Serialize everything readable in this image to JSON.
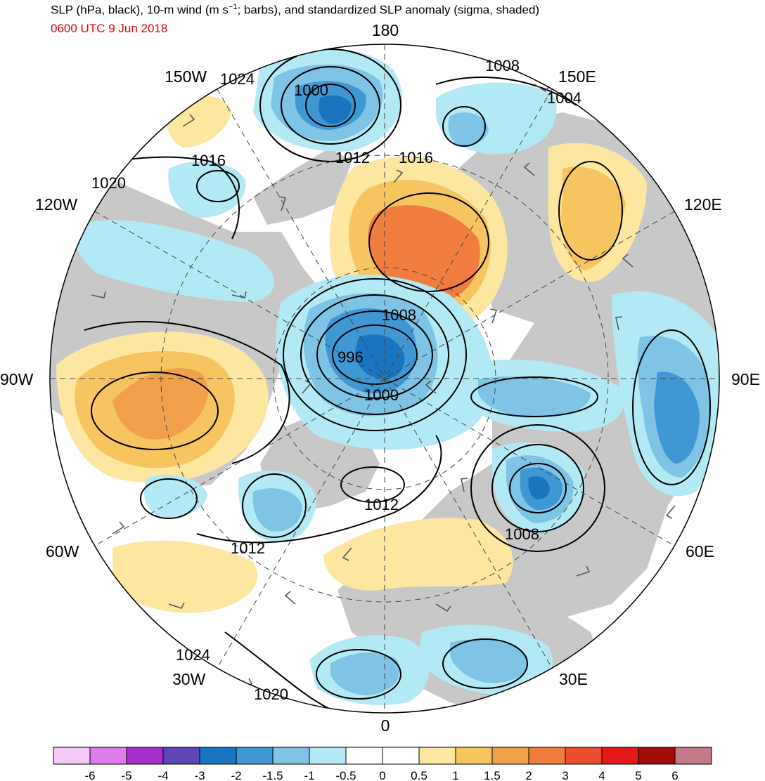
{
  "header": {
    "title_main": "SLP (hPa, black), 10-m wind (m s",
    "title_sup": "−1",
    "title_rest": "; barbs), and standardized SLP anomaly (sigma, shaded)",
    "valid_time": "0600 UTC 9 Jun 2018",
    "valid_time_color": "#e00000"
  },
  "map": {
    "projection": "north polar stereographic",
    "longitude_labels": [
      "180",
      "150E",
      "120E",
      "90E",
      "60E",
      "30E",
      "0",
      "30W",
      "60W",
      "90W",
      "120W",
      "150W"
    ],
    "isobar_labels": [
      "1024",
      "1000",
      "1008",
      "1004",
      "1016",
      "1012",
      "1016",
      "1020",
      "1008",
      "996",
      "1000",
      "1012",
      "1012",
      "1008",
      "1024",
      "1020"
    ],
    "land_color": "#c8c8c8",
    "ocean_color": "#ffffff"
  },
  "colorbar": {
    "colors": [
      "#f5c9f7",
      "#dd7cea",
      "#a72ec9",
      "#6045b4",
      "#1a75c0",
      "#3f97d4",
      "#7fc3e5",
      "#b3e9f5",
      "#ffffff",
      "#ffffff",
      "#fde6a0",
      "#f6c55f",
      "#f3a04b",
      "#ef7d3d",
      "#eb4c2e",
      "#e21819",
      "#a30b0b",
      "#c17a86"
    ],
    "tick_labels": [
      "-6",
      "-5",
      "-4",
      "-3",
      "-2",
      "-1.5",
      "-1",
      "-0.5",
      "0",
      "0.5",
      "1",
      "1.5",
      "2",
      "3",
      "4",
      "5",
      "6"
    ]
  }
}
